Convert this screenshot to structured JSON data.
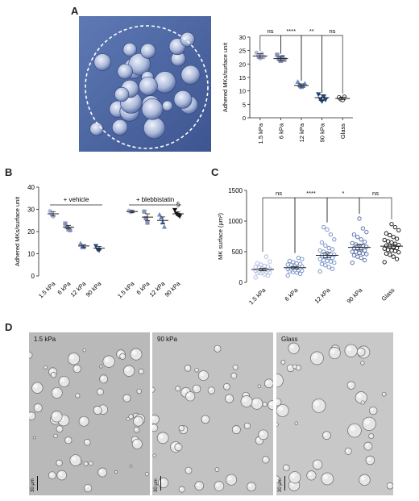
{
  "panels": {
    "a": "A",
    "b": "B",
    "c": "C",
    "d": "D"
  },
  "colors": {
    "k1_5": "#b7b9dd",
    "k6": "#8a8fb8",
    "k12": "#5068a8",
    "k90": "#1e4a86",
    "glass": "#111111",
    "light_blue": "#aab8e0",
    "mid_blue": "#6e8cc4"
  },
  "chart_data": [
    {
      "id": "A",
      "type": "scatter",
      "ylabel": "Adhered MKs/surface unit",
      "categories": [
        "1.5 kPa",
        "6 kPa",
        "12 kPa",
        "90 kPa",
        "Glass"
      ],
      "ylim": [
        0,
        30
      ],
      "yticks": [
        0,
        5,
        10,
        15,
        20,
        25,
        30
      ],
      "markers": [
        "circle",
        "square",
        "triangle",
        "triangle-down",
        "circle"
      ],
      "groups": [
        {
          "category": "1.5 kPa",
          "mean": 23,
          "sem": 0.8,
          "points": [
            24.2,
            23.0,
            22.1,
            23.8,
            22.6
          ]
        },
        {
          "category": "6 kPa",
          "mean": 22,
          "sem": 0.8,
          "points": [
            23.4,
            22.0,
            21.2,
            22.6,
            21.6
          ]
        },
        {
          "category": "12 kPa",
          "mean": 12,
          "sem": 0.6,
          "points": [
            13.3,
            12.2,
            11.4,
            11.8,
            12.6
          ]
        },
        {
          "category": "90 kPa",
          "mean": 7.5,
          "sem": 1.0,
          "points": [
            8.8,
            7.0,
            6.2,
            8.0,
            6.8
          ]
        },
        {
          "category": "Glass",
          "mean": 7.2,
          "sem": 0.5,
          "points": [
            7.6,
            6.9,
            6.6,
            7.8
          ]
        }
      ],
      "significance": [
        {
          "from": "1.5 kPa",
          "to": "6 kPa",
          "label": "ns"
        },
        {
          "from": "6 kPa",
          "to": "12 kPa",
          "label": "****"
        },
        {
          "from": "12 kPa",
          "to": "90 kPa",
          "label": "**"
        },
        {
          "from": "90 kPa",
          "to": "Glass",
          "label": "ns"
        }
      ]
    },
    {
      "id": "B",
      "type": "scatter",
      "ylabel": "Adhered MKs/surface unit",
      "ylim": [
        0,
        40
      ],
      "yticks": [
        0,
        10,
        20,
        30,
        40
      ],
      "group_labels": [
        "+ vehicle",
        "+ blebbistatin"
      ],
      "annotation": "§",
      "groups": [
        {
          "group": "+ vehicle",
          "category": "1.5 kPa",
          "mean": 28,
          "sem": 1.0,
          "points": [
            29.2,
            27.6,
            26.8
          ]
        },
        {
          "group": "+ vehicle",
          "category": "6 kPa",
          "mean": 22,
          "sem": 0.8,
          "points": [
            23.6,
            22.0,
            21.0,
            20.6
          ]
        },
        {
          "group": "+ vehicle",
          "category": "12 kPa",
          "mean": 13.5,
          "sem": 0.6,
          "points": [
            14.5,
            13.0,
            12.8
          ]
        },
        {
          "group": "+ vehicle",
          "category": "90 kPa",
          "mean": 12.5,
          "sem": 0.8,
          "points": [
            13.6,
            12.0,
            11.6
          ]
        },
        {
          "group": "+ blebbistatin",
          "category": "1.5 kPa",
          "mean": 29,
          "sem": 0.5,
          "points": [
            29.4,
            28.8,
            29.0
          ]
        },
        {
          "group": "+ blebbistatin",
          "category": "6 kPa",
          "mean": 26.5,
          "sem": 1.5,
          "points": [
            29.0,
            26.0,
            24.0
          ]
        },
        {
          "group": "+ blebbistatin",
          "category": "12 kPa",
          "mean": 25,
          "sem": 1.6,
          "points": [
            27.5,
            26.2,
            24.2,
            22.0
          ]
        },
        {
          "group": "+ blebbistatin",
          "category": "90 kPa",
          "mean": 28,
          "sem": 0.8,
          "points": [
            29.8,
            28.2,
            27.6,
            27.0
          ]
        }
      ]
    },
    {
      "id": "C",
      "type": "scatter",
      "ylabel": "MK surface (µm²)",
      "categories": [
        "1.5 kPa",
        "6 kPa",
        "12 kPa",
        "90 kPa",
        "Glass"
      ],
      "ylim": [
        0,
        1500
      ],
      "yticks": [
        0,
        500,
        1000,
        1500
      ],
      "groups": [
        {
          "category": "1.5 kPa",
          "mean": 210,
          "sem": 20,
          "points": [
            80,
            110,
            130,
            150,
            160,
            170,
            180,
            190,
            200,
            205,
            210,
            220,
            230,
            240,
            250,
            260,
            270,
            290,
            310,
            340,
            420,
            180,
            200,
            230,
            150
          ]
        },
        {
          "category": "6 kPa",
          "mean": 240,
          "sem": 20,
          "points": [
            110,
            140,
            160,
            170,
            180,
            190,
            200,
            210,
            220,
            230,
            240,
            250,
            260,
            270,
            280,
            290,
            300,
            310,
            330,
            350,
            380,
            400,
            200,
            240,
            260
          ]
        },
        {
          "category": "12 kPa",
          "mean": 440,
          "sem": 40,
          "points": [
            180,
            220,
            250,
            280,
            300,
            320,
            340,
            360,
            380,
            400,
            420,
            440,
            460,
            480,
            500,
            520,
            540,
            560,
            600,
            650,
            700,
            780,
            860,
            900,
            400,
            450,
            350
          ]
        },
        {
          "category": "90 kPa",
          "mean": 570,
          "sem": 40,
          "points": [
            320,
            360,
            400,
            420,
            440,
            460,
            480,
            500,
            520,
            540,
            560,
            580,
            600,
            620,
            640,
            660,
            700,
            740,
            780,
            820,
            880,
            1040,
            550,
            600,
            500,
            470
          ]
        },
        {
          "category": "Glass",
          "mean": 590,
          "sem": 30,
          "points": [
            330,
            380,
            420,
            450,
            470,
            490,
            510,
            530,
            550,
            570,
            590,
            610,
            630,
            650,
            670,
            690,
            710,
            740,
            770,
            800,
            850,
            900,
            950,
            600,
            560,
            520
          ]
        }
      ],
      "significance": [
        {
          "from": "1.5 kPa",
          "to": "6 kPa",
          "label": "ns"
        },
        {
          "from": "6 kPa",
          "to": "12 kPa",
          "label": "****"
        },
        {
          "from": "12 kPa",
          "to": "90 kPa",
          "label": "*"
        },
        {
          "from": "90 kPa",
          "to": "Glass",
          "label": "ns"
        }
      ]
    }
  ],
  "micrographs": [
    {
      "label": "1.5 kPa",
      "scale": "30 µm"
    },
    {
      "label": "90 kPa",
      "scale": "30 µm"
    },
    {
      "label": "Glass",
      "scale": "30 µm"
    }
  ]
}
